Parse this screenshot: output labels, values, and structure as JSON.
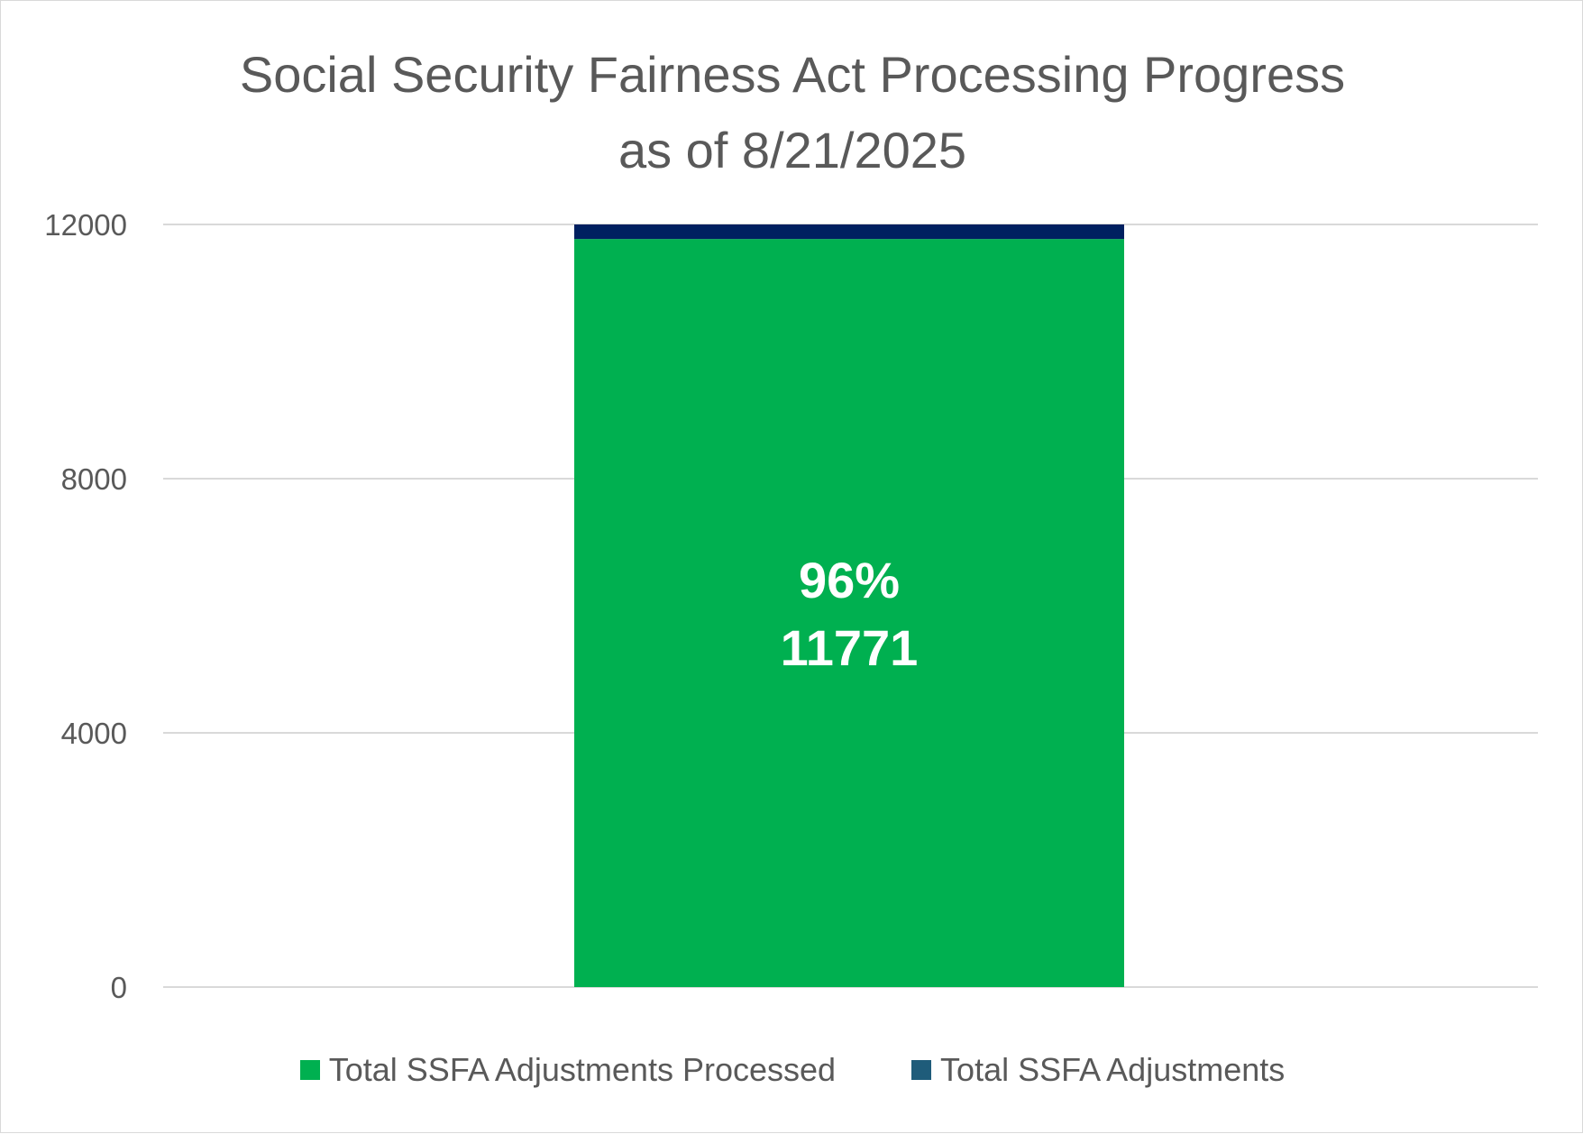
{
  "chart_data": {
    "type": "bar",
    "stacked": true,
    "title": "Social Security Fairness Act Processing Progress",
    "subtitle": "as of 8/21/2025",
    "xlabel": "",
    "ylabel": "",
    "categories": [
      ""
    ],
    "ylim": [
      0,
      12000
    ],
    "y_ticks": [
      0,
      4000,
      8000,
      12000
    ],
    "grid": true,
    "legend_position": "bottom",
    "series": [
      {
        "name": "Total SSFA Adjustments Processed",
        "values": [
          11771
        ],
        "color": "#00b050",
        "data_label_percent": "96%",
        "data_label_value": "11771"
      },
      {
        "name": "Total SSFA Adjustments",
        "values": [
          229
        ],
        "color": "#002060",
        "legend_color": "#1f5c7a"
      }
    ]
  }
}
